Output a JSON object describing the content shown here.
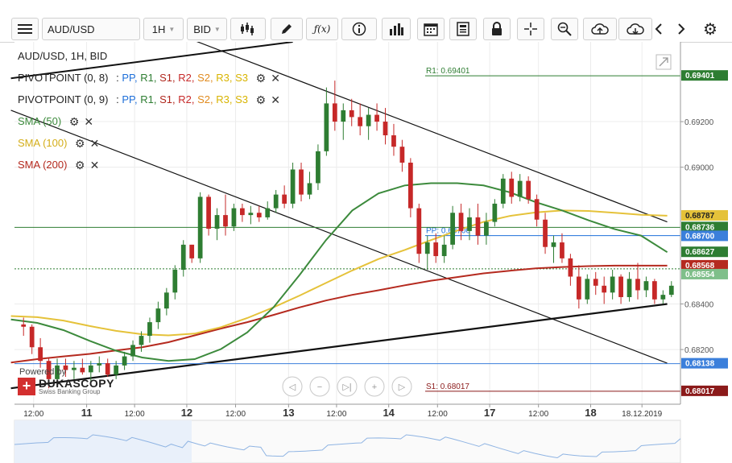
{
  "toolbar": {
    "symbol": "AUD/USD",
    "timeframe": "1H",
    "price_type": "BID",
    "menu_icon": "hamburger-menu-icon",
    "tools": [
      "candlestick-icon",
      "draw-pencil-icon",
      "function-icon",
      "info-icon",
      "bar-chart-icon",
      "calendar-icon",
      "report-icon",
      "lock-icon",
      "crosshair-icon",
      "zoom-icon",
      "upload-cloud-icon",
      "download-cloud-icon",
      "chevron-left-icon",
      "chevron-right-icon",
      "settings-gear-icon"
    ]
  },
  "legend": {
    "title": "AUD/USD, 1H, BID",
    "pivot1": {
      "name": "PIVOTPOINT (0, 8)",
      "parts": [
        ":",
        "PP,",
        "R1,",
        "S1,",
        "R2,",
        "S2,",
        "R3,",
        "S3"
      ]
    },
    "pivot2": {
      "name": "PIVOTPOINT (0, 9)",
      "parts": [
        ":",
        "PP,",
        "R1,",
        "S1,",
        "R2,",
        "S2,",
        "R3,",
        "S3"
      ]
    },
    "sma50": "SMA (50)",
    "sma100": "SMA (100)",
    "sma200": "SMA (200)"
  },
  "branding": {
    "powered_by": "Powered by",
    "name": "DUKASCOPY",
    "tagline": "Swiss Banking Group"
  },
  "colors": {
    "up": "#2e7d32",
    "down": "#c62828",
    "sma50": "#3c8a3c",
    "sma100": "#e5c23a",
    "sma200": "#b52a1f",
    "pp": "#1e6fd9",
    "r1": "#2e7d32",
    "s1": "#b0261c",
    "r2": "#c62828",
    "s2": "#e08a1e",
    "r3": "#d8b400",
    "s3": "#d8b400"
  },
  "chart_data": {
    "type": "candlestick",
    "symbol": "AUD/USD",
    "timeframe": "1H",
    "price_axis_ticks": [
      "0.69200",
      "0.69000",
      "0.68400",
      "0.68200"
    ],
    "ylim": [
      0.6796,
      0.6955
    ],
    "x_tick_labels": [
      "12:00",
      "11",
      "12:00",
      "12",
      "12:00",
      "13",
      "12:00",
      "14",
      "12:00",
      "17",
      "12:00",
      "18",
      "18.12.2019"
    ],
    "horizontal_levels": [
      {
        "label": "R1: 0.69401",
        "value": 0.69401,
        "color": "#2e7d32"
      },
      {
        "label": "PP: 0.68700",
        "value": 0.687,
        "color": "#1e6fd9"
      },
      {
        "label": "S1: 0.68017",
        "value": 0.68017,
        "color": "#8b1a1a"
      }
    ],
    "extra_levels": [
      0.68736,
      0.68138
    ],
    "price_tags": [
      {
        "value": "0.69401",
        "bg": "#2e7d32"
      },
      {
        "value": "0.68787",
        "bg": "#e5c23a"
      },
      {
        "value": "0.68736",
        "bg": "#2e7d32"
      },
      {
        "value": "0.68700",
        "bg": "#3b7fdb"
      },
      {
        "value": "0.68627",
        "bg": "#2e7d32"
      },
      {
        "value": "0.68568",
        "bg": "#b52a1f"
      },
      {
        "value": "0.68554",
        "bg": "#7fbf8a"
      },
      {
        "value": "0.68138",
        "bg": "#3b7fdb"
      },
      {
        "value": "0.68017",
        "bg": "#8b1a1a"
      }
    ],
    "candles": [
      [
        0.6831,
        0.6834,
        0.6826,
        0.683
      ],
      [
        0.683,
        0.6831,
        0.6818,
        0.6821
      ],
      [
        0.6821,
        0.6825,
        0.6812,
        0.6815
      ],
      [
        0.6815,
        0.6816,
        0.6803,
        0.6807
      ],
      [
        0.6807,
        0.6816,
        0.6805,
        0.6813
      ],
      [
        0.6813,
        0.6816,
        0.6808,
        0.6811
      ],
      [
        0.6811,
        0.6815,
        0.6807,
        0.6812
      ],
      [
        0.6812,
        0.6816,
        0.6809,
        0.681
      ],
      [
        0.681,
        0.6815,
        0.6806,
        0.6813
      ],
      [
        0.6813,
        0.6817,
        0.681,
        0.6814
      ],
      [
        0.6814,
        0.6816,
        0.6808,
        0.6809
      ],
      [
        0.6809,
        0.6815,
        0.6807,
        0.6813
      ],
      [
        0.6813,
        0.6819,
        0.6811,
        0.6817
      ],
      [
        0.6817,
        0.6824,
        0.6815,
        0.6822
      ],
      [
        0.6822,
        0.6828,
        0.6819,
        0.6826
      ],
      [
        0.6826,
        0.6834,
        0.6823,
        0.6832
      ],
      [
        0.6832,
        0.6841,
        0.6829,
        0.6838
      ],
      [
        0.6838,
        0.6847,
        0.6835,
        0.6845
      ],
      [
        0.6845,
        0.6857,
        0.6842,
        0.6855
      ],
      [
        0.6855,
        0.6868,
        0.6852,
        0.6866
      ],
      [
        0.6866,
        0.6866,
        0.6858,
        0.686
      ],
      [
        0.686,
        0.6889,
        0.6858,
        0.6887
      ],
      [
        0.6887,
        0.6888,
        0.687,
        0.6873
      ],
      [
        0.6873,
        0.6882,
        0.6868,
        0.6879
      ],
      [
        0.6879,
        0.6888,
        0.687,
        0.6874
      ],
      [
        0.6874,
        0.6884,
        0.6872,
        0.6882
      ],
      [
        0.6882,
        0.6884,
        0.6876,
        0.6879
      ],
      [
        0.6879,
        0.6883,
        0.6875,
        0.688
      ],
      [
        0.688,
        0.6883,
        0.6876,
        0.6878
      ],
      [
        0.6878,
        0.6885,
        0.6877,
        0.6882
      ],
      [
        0.6882,
        0.689,
        0.688,
        0.6888
      ],
      [
        0.6888,
        0.6892,
        0.6882,
        0.6884
      ],
      [
        0.6884,
        0.6902,
        0.6882,
        0.6899
      ],
      [
        0.6899,
        0.6902,
        0.6885,
        0.6888
      ],
      [
        0.6888,
        0.6898,
        0.6886,
        0.6893
      ],
      [
        0.6893,
        0.691,
        0.689,
        0.6907
      ],
      [
        0.6907,
        0.6935,
        0.6905,
        0.6928
      ],
      [
        0.6928,
        0.6938,
        0.6916,
        0.692
      ],
      [
        0.692,
        0.6928,
        0.6912,
        0.6925
      ],
      [
        0.6925,
        0.693,
        0.6918,
        0.6922
      ],
      [
        0.6922,
        0.6928,
        0.6914,
        0.6918
      ],
      [
        0.6918,
        0.6926,
        0.6912,
        0.6923
      ],
      [
        0.6923,
        0.6928,
        0.6916,
        0.692
      ],
      [
        0.692,
        0.6926,
        0.691,
        0.6914
      ],
      [
        0.6914,
        0.6919,
        0.6905,
        0.6909
      ],
      [
        0.6909,
        0.6912,
        0.6898,
        0.6902
      ],
      [
        0.6902,
        0.6904,
        0.6878,
        0.6882
      ],
      [
        0.6882,
        0.6884,
        0.6858,
        0.6862
      ],
      [
        0.6862,
        0.687,
        0.6855,
        0.6867
      ],
      [
        0.6867,
        0.6871,
        0.6858,
        0.6861
      ],
      [
        0.6861,
        0.687,
        0.6858,
        0.6866
      ],
      [
        0.6866,
        0.6883,
        0.6864,
        0.688
      ],
      [
        0.688,
        0.6884,
        0.6868,
        0.6872
      ],
      [
        0.6872,
        0.6882,
        0.6868,
        0.6878
      ],
      [
        0.6878,
        0.6884,
        0.6866,
        0.687
      ],
      [
        0.687,
        0.688,
        0.6866,
        0.6876
      ],
      [
        0.6876,
        0.6886,
        0.6874,
        0.6884
      ],
      [
        0.6884,
        0.6897,
        0.6882,
        0.6895
      ],
      [
        0.6895,
        0.6898,
        0.6884,
        0.6887
      ],
      [
        0.6887,
        0.6897,
        0.6885,
        0.6894
      ],
      [
        0.6894,
        0.6896,
        0.6884,
        0.6886
      ],
      [
        0.6886,
        0.6888,
        0.6874,
        0.6877
      ],
      [
        0.6877,
        0.688,
        0.6862,
        0.6865
      ],
      [
        0.6865,
        0.687,
        0.6858,
        0.6867
      ],
      [
        0.6867,
        0.6871,
        0.6858,
        0.686
      ],
      [
        0.686,
        0.6862,
        0.6848,
        0.6852
      ],
      [
        0.6852,
        0.6857,
        0.6838,
        0.6842
      ],
      [
        0.6842,
        0.6853,
        0.684,
        0.6851
      ],
      [
        0.6851,
        0.6854,
        0.6844,
        0.6848
      ],
      [
        0.6848,
        0.6852,
        0.684,
        0.6845
      ],
      [
        0.6845,
        0.6855,
        0.6842,
        0.6852
      ],
      [
        0.6852,
        0.6853,
        0.684,
        0.6843
      ],
      [
        0.6843,
        0.6854,
        0.6841,
        0.6851
      ],
      [
        0.6851,
        0.6858,
        0.6842,
        0.6846
      ],
      [
        0.6846,
        0.6852,
        0.6843,
        0.685
      ],
      [
        0.685,
        0.6851,
        0.684,
        0.6842
      ],
      [
        0.6842,
        0.6846,
        0.684,
        0.6844
      ],
      [
        0.6844,
        0.685,
        0.6843,
        0.6848
      ]
    ],
    "sma50": [
      0.68332,
      0.68317,
      0.68285,
      0.68238,
      0.68195,
      0.68165,
      0.6815,
      0.68158,
      0.68202,
      0.68275,
      0.68385,
      0.68528,
      0.6868,
      0.6881,
      0.68885,
      0.6892,
      0.6893,
      0.6893,
      0.6892,
      0.6889,
      0.68846,
      0.6881,
      0.68767,
      0.68728,
      0.687,
      0.68627
    ],
    "sma100": [
      0.68347,
      0.68342,
      0.68327,
      0.68303,
      0.68282,
      0.68267,
      0.68262,
      0.6827,
      0.68298,
      0.68338,
      0.68385,
      0.68437,
      0.68492,
      0.68547,
      0.68597,
      0.68637,
      0.6868,
      0.68722,
      0.6876,
      0.68786,
      0.68802,
      0.6881,
      0.68808,
      0.688,
      0.68791,
      0.68787
    ],
    "sma200": [
      0.68143,
      0.68158,
      0.6817,
      0.68181,
      0.68196,
      0.6821,
      0.68232,
      0.68262,
      0.68292,
      0.6832,
      0.68352,
      0.68385,
      0.68415,
      0.6844,
      0.6846,
      0.68482,
      0.68502,
      0.68518,
      0.68534,
      0.68546,
      0.68556,
      0.68562,
      0.68566,
      0.68568,
      0.68568,
      0.68568
    ]
  }
}
